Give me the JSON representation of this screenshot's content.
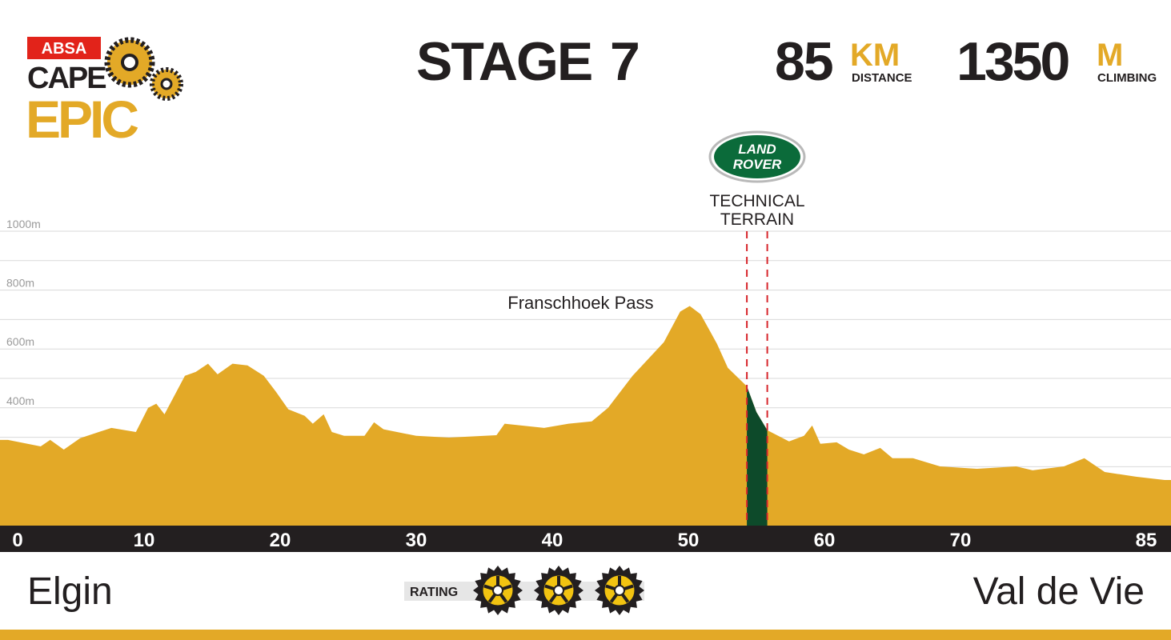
{
  "header": {
    "logo": {
      "sponsor": "ABSA",
      "line1": "CAPE",
      "line2": "EPIC"
    },
    "stage_label": "STAGE",
    "stage_number": "7",
    "distance": "85",
    "distance_unit": "KM",
    "distance_caption": "DISTANCE",
    "climbing": "1350",
    "climbing_unit": "M",
    "climbing_caption": "CLIMBING"
  },
  "chart_data": {
    "type": "area",
    "color": "#e3a927",
    "grid": true,
    "x": [
      0,
      2.4,
      3.1,
      4.1,
      5.3,
      7.6,
      9.4,
      10.3,
      10.9,
      11.5,
      13.0,
      13.8,
      14.7,
      15.4,
      16.5,
      17.6,
      18.8,
      19.7,
      20.6,
      21.8,
      22.4,
      23.2,
      23.8,
      24.7,
      26.2,
      26.9,
      27.6,
      30.0,
      32.4,
      35.9,
      36.5,
      39.4,
      41.2,
      42.9,
      44.1,
      45.9,
      48.2,
      49.4,
      50.1,
      50.9,
      52.1,
      52.9,
      54.3,
      55.0,
      55.8,
      57.4,
      58.5,
      59.1,
      59.7,
      60.9,
      61.8,
      62.9,
      64.1,
      65.0,
      66.5,
      68.5,
      71.2,
      74.1,
      75.3,
      77.6,
      79.1,
      80.6,
      82.9,
      85.0
    ],
    "values": [
      291,
      269,
      291,
      258,
      297,
      332,
      318,
      400,
      414,
      378,
      509,
      522,
      550,
      514,
      550,
      544,
      509,
      454,
      395,
      373,
      346,
      378,
      318,
      305,
      305,
      351,
      327,
      305,
      299,
      307,
      346,
      332,
      346,
      354,
      400,
      509,
      623,
      727,
      746,
      718,
      618,
      536,
      473,
      386,
      324,
      286,
      305,
      340,
      278,
      283,
      258,
      242,
      264,
      229,
      229,
      201,
      193,
      201,
      188,
      201,
      229,
      182,
      166,
      155
    ],
    "xlim": [
      0,
      85
    ],
    "xticks": [
      0,
      10,
      20,
      30,
      40,
      50,
      60,
      70,
      85
    ],
    "ylim": [
      0,
      1000
    ],
    "yticks": [
      {
        "value": 100,
        "label": null
      },
      {
        "value": 200,
        "label": null
      },
      {
        "value": 300,
        "label": null
      },
      {
        "value": 400,
        "label": "400m"
      },
      {
        "value": 500,
        "label": null
      },
      {
        "value": 600,
        "label": "600m"
      },
      {
        "value": 700,
        "label": null
      },
      {
        "value": 800,
        "label": "800m"
      },
      {
        "value": 900,
        "label": null
      },
      {
        "value": 1000,
        "label": "1000m"
      }
    ],
    "annotation": {
      "text": "Franschhoek Pass",
      "x": 49.5
    },
    "technical_terrain": {
      "sponsor": [
        "LAND",
        "ROVER"
      ],
      "label": [
        "TECHNICAL",
        "TERRAIN"
      ],
      "x": [
        54.3,
        55.8
      ],
      "color": "#0d4a2a"
    }
  },
  "footer": {
    "start": "Elgin",
    "finish": "Val de Vie",
    "rating_label": "RATING",
    "rating": 3
  }
}
